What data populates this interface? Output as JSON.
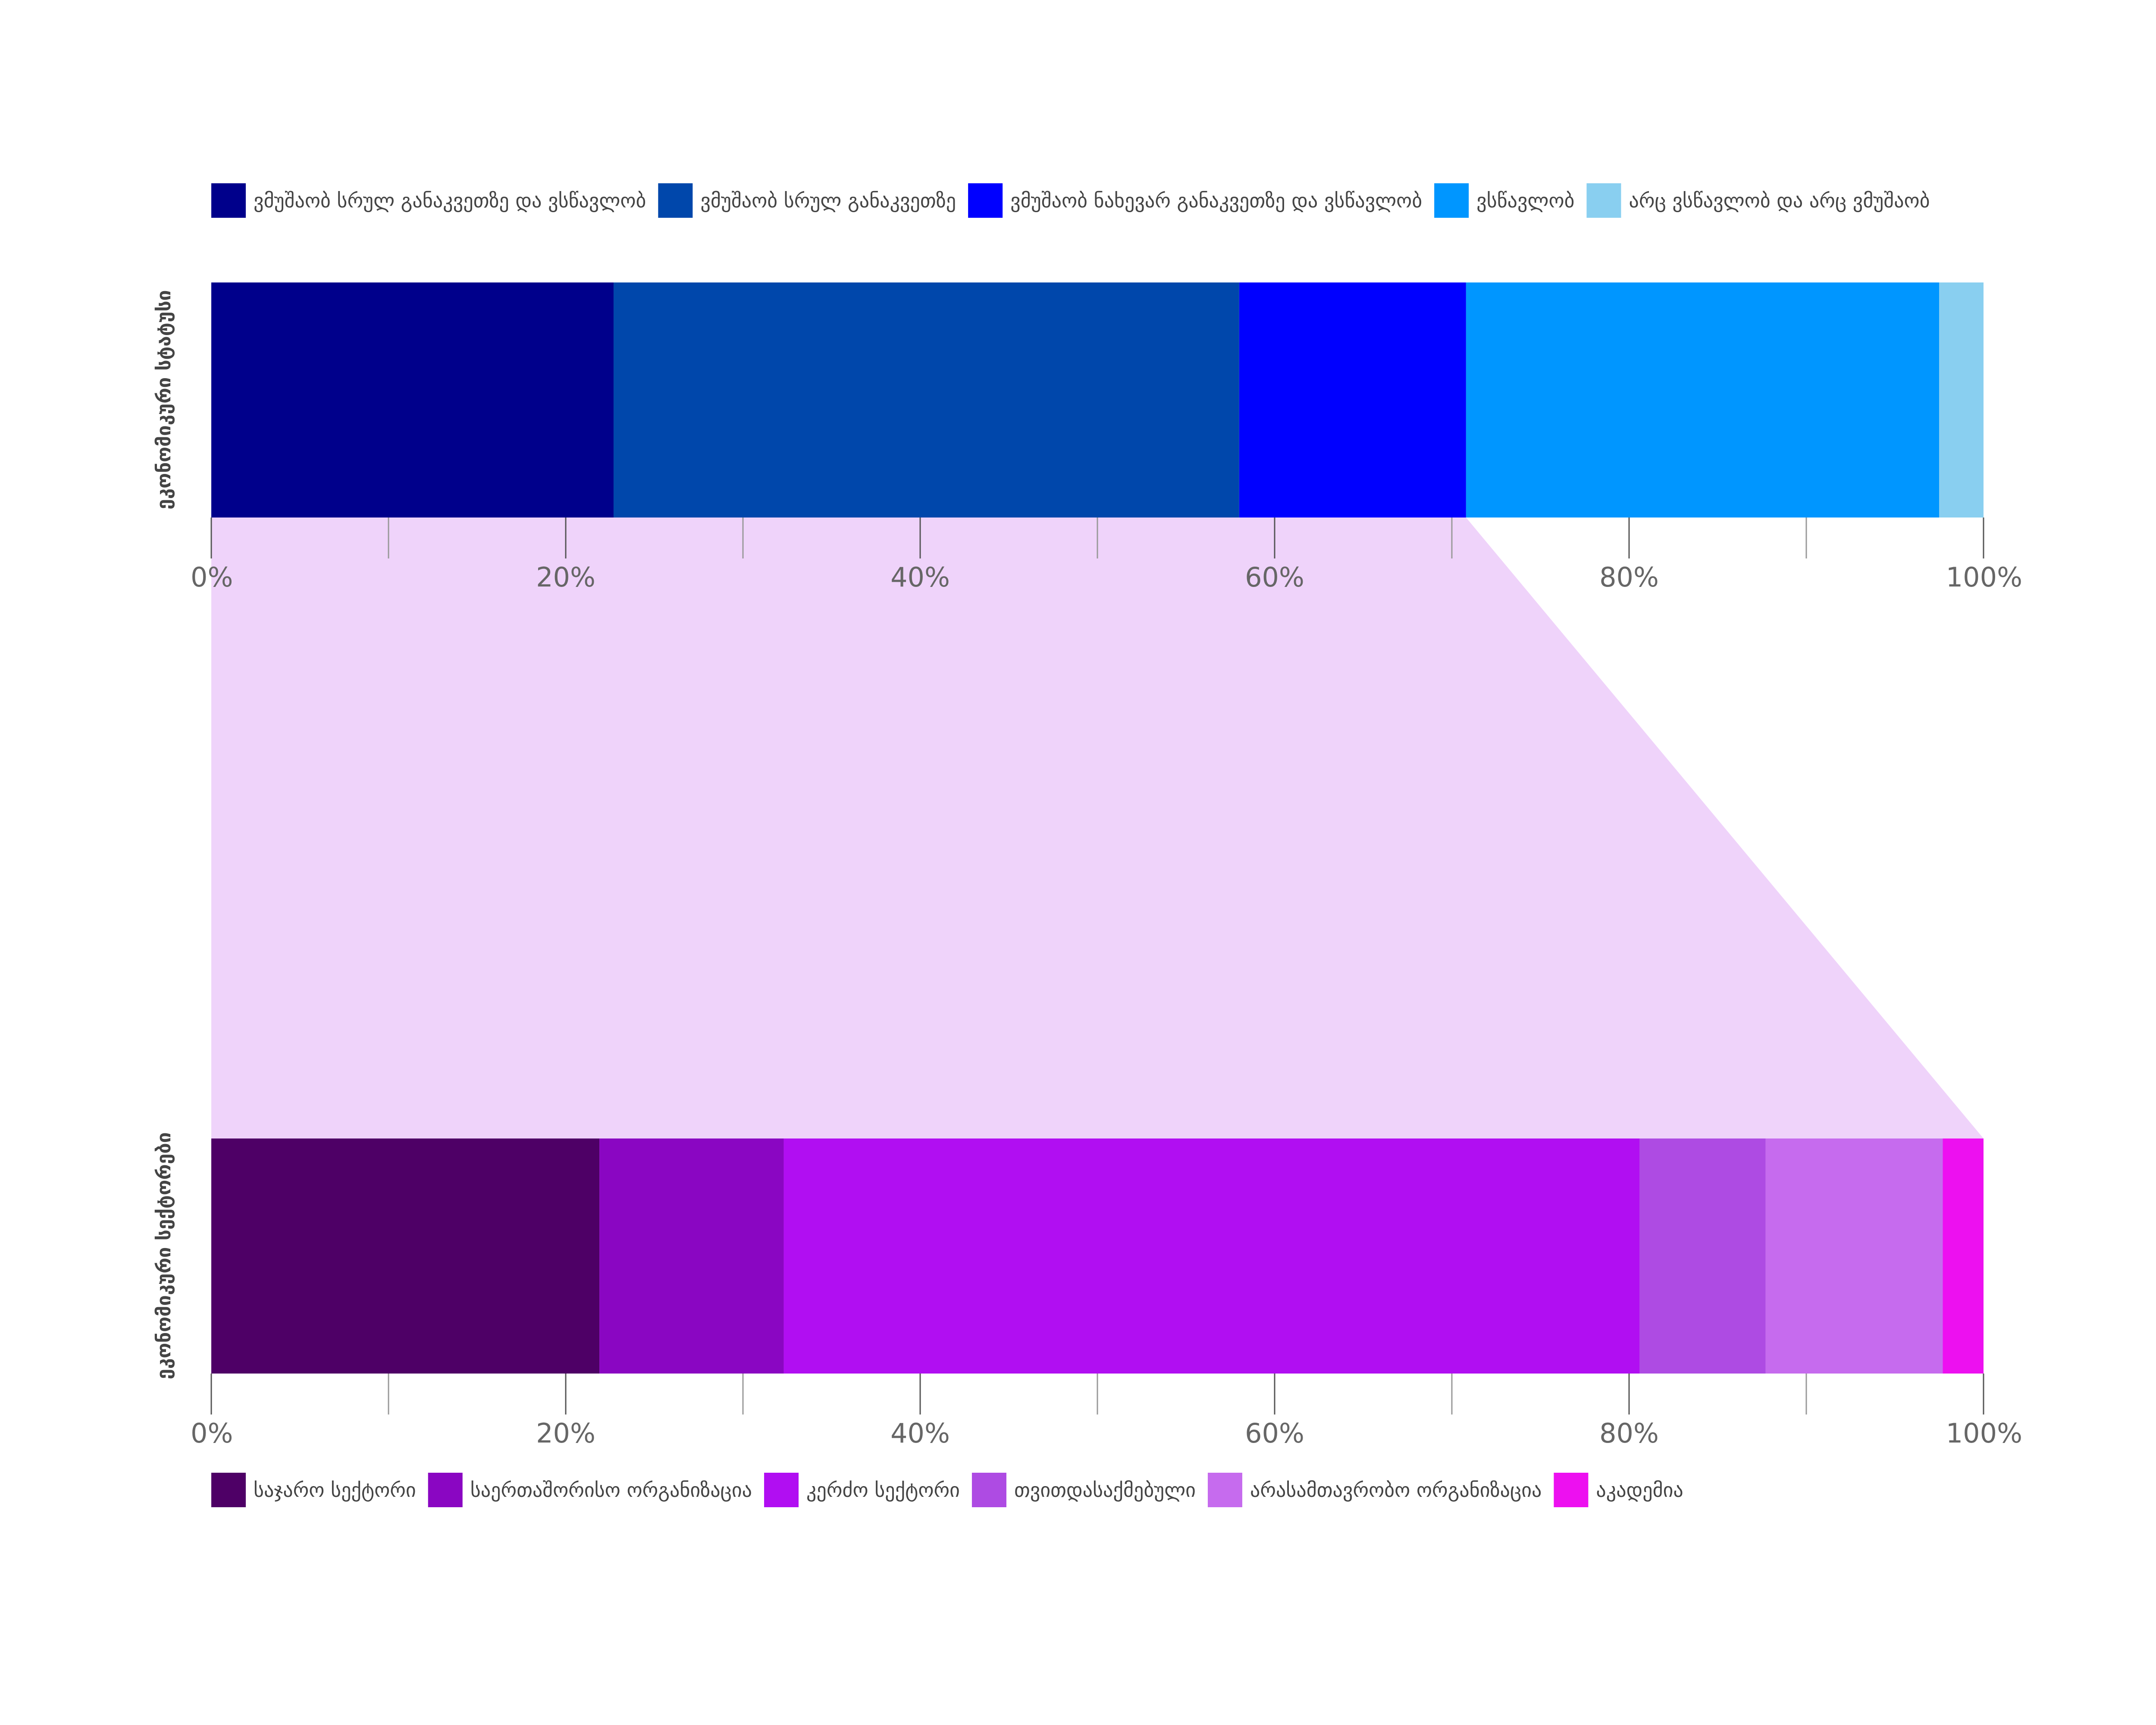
{
  "chart_data": [
    {
      "type": "bar",
      "orientation": "horizontal",
      "stacked": true,
      "ylabel": "ეკონომიკური სტატუსი",
      "xlim": [
        0,
        100
      ],
      "x_ticks": [
        "0%",
        "20%",
        "40%",
        "60%",
        "80%",
        "100%"
      ],
      "legend_position": "top",
      "series": [
        {
          "name": "ვმუშაობ სრულ განაკვეთზე და ვსწავლობ",
          "value": 22.7,
          "color": "#00008B"
        },
        {
          "name": "ვმუშაობ სრულ განაკვეთზე",
          "value": 35.3,
          "color": "#0047AB"
        },
        {
          "name": "ვმუშაობ ნახევარ განაკვეთზე და ვსწავლობ",
          "value": 12.8,
          "color": "#0000FF"
        },
        {
          "name": "ვსწავლობ",
          "value": 26.7,
          "color": "#0096FF"
        },
        {
          "name": "არც ვსწავლობ და არც ვმუშაობ",
          "value": 2.5,
          "color": "#89CFF0"
        }
      ]
    },
    {
      "type": "bar",
      "orientation": "horizontal",
      "stacked": true,
      "ylabel": "ეკონომიკური სექტორები",
      "xlim": [
        0,
        100
      ],
      "x_ticks": [
        "0%",
        "20%",
        "40%",
        "60%",
        "80%",
        "100%"
      ],
      "legend_position": "bottom",
      "series": [
        {
          "name": "საჯარო სექტორი",
          "value": 21.9,
          "color": "#4E0066"
        },
        {
          "name": "საერთაშორისო ორგანიზაცია",
          "value": 10.4,
          "color": "#8A06C2"
        },
        {
          "name": "კერძო სექტორი",
          "value": 48.3,
          "color": "#B10EF2"
        },
        {
          "name": "თვითდასაქმებული",
          "value": 7.1,
          "color": "#AE4BE3"
        },
        {
          "name": "არასამთავრობო ორგანიზაცია",
          "value": 10.0,
          "color": "#C66BEE"
        },
        {
          "name": "აკადემია",
          "value": 2.3,
          "color": "#ED10F0"
        }
      ]
    }
  ],
  "connector_color": "#EFD3FA",
  "connector_from_series_index": 2
}
